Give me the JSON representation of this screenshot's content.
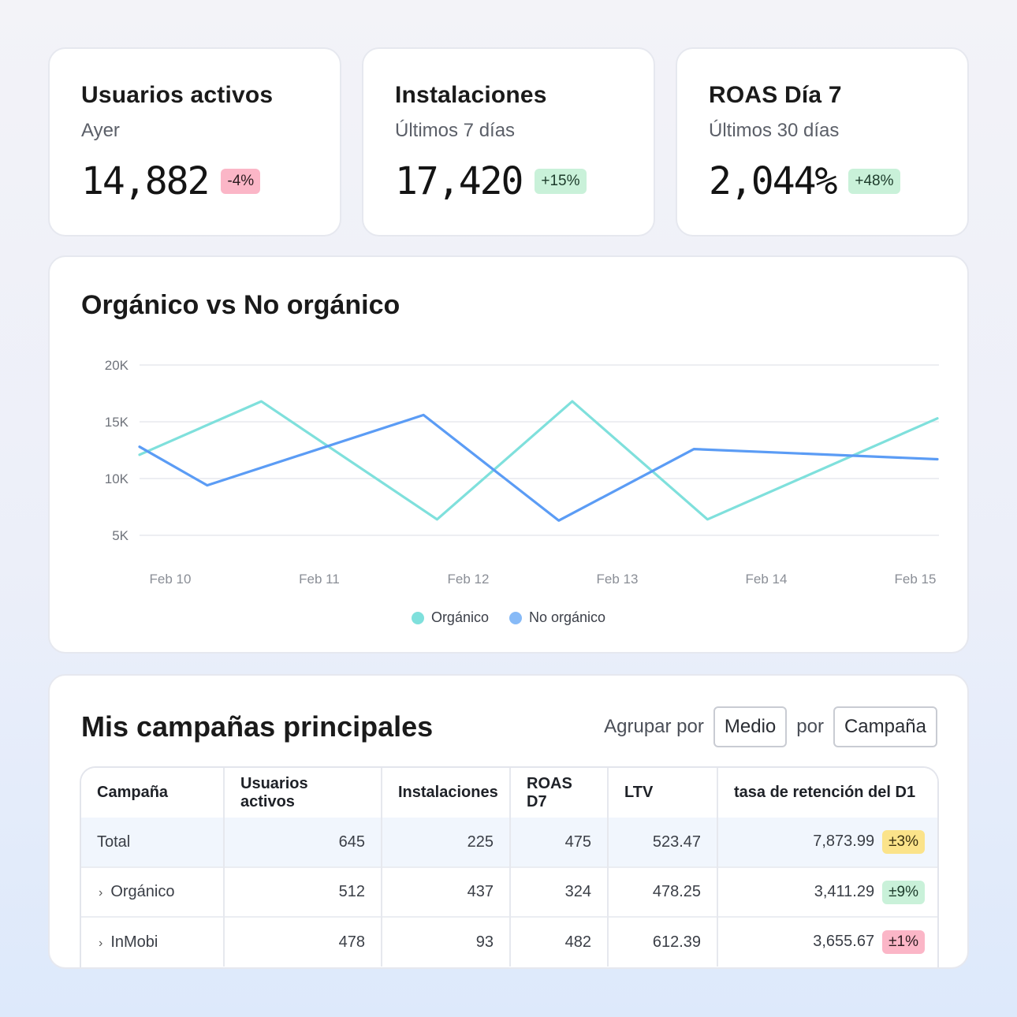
{
  "kpis": [
    {
      "title": "Usuarios activos",
      "subtitle": "Ayer",
      "value": "14,882",
      "delta": "-4%",
      "delta_tone": "red"
    },
    {
      "title": "Instalaciones",
      "subtitle": "Últimos 7 días",
      "value": "17,420",
      "delta": "+15%",
      "delta_tone": "green"
    },
    {
      "title": "ROAS Día 7",
      "subtitle": "Últimos 30 días",
      "value": "2,044%",
      "delta": "+48%",
      "delta_tone": "green"
    }
  ],
  "chart_card": {
    "title": "Orgánico vs No orgánico"
  },
  "chart_data": {
    "type": "line",
    "title": "Orgánico vs No orgánico",
    "x_ticks": [
      "Feb 10",
      "Feb 11",
      "Feb 12",
      "Feb 13",
      "Feb 14",
      "Feb 15"
    ],
    "y_ticks": [
      "20K",
      "15K",
      "10K",
      "5K"
    ],
    "y_tick_values": [
      20000,
      15000,
      10000,
      5000
    ],
    "ylim": [
      5000,
      20000
    ],
    "xlim": [
      0,
      5.9
    ],
    "grid": true,
    "legend_placement": "bottom-center",
    "series": [
      {
        "name": "Orgánico",
        "color": "#7fe0dc",
        "points": [
          [
            0,
            12100
          ],
          [
            0.9,
            16800
          ],
          [
            2.2,
            6400
          ],
          [
            3.2,
            16800
          ],
          [
            4.2,
            6400
          ],
          [
            5.9,
            15300
          ]
        ]
      },
      {
        "name": "No orgánico",
        "color": "#5b9cf5",
        "points": [
          [
            0,
            12800
          ],
          [
            0.5,
            9400
          ],
          [
            2.1,
            15600
          ],
          [
            3.1,
            6300
          ],
          [
            4.1,
            12600
          ],
          [
            5.9,
            11700
          ]
        ]
      }
    ],
    "legend": [
      {
        "label": "Orgánico",
        "color": "#7fe0dc"
      },
      {
        "label": "No orgánico",
        "color": "#87baf7"
      }
    ]
  },
  "campaigns": {
    "title": "Mis campañas principales",
    "group_label": "Agrupar por",
    "group_value_1": "Medio",
    "group_by_connector": "por",
    "group_value_2": "Campaña",
    "columns": [
      "Campaña",
      "Usuarios activos",
      "Instalaciones",
      "ROAS D7",
      "LTV",
      "tasa de retención del D1"
    ],
    "rows": [
      {
        "name": "Total",
        "expandable": false,
        "users": "645",
        "installs": "225",
        "roas": "475",
        "ltv": "523.47",
        "retention": "7,873.99",
        "delta": "±3%",
        "delta_tone": "yellow"
      },
      {
        "name": "Orgánico",
        "expandable": true,
        "users": "512",
        "installs": "437",
        "roas": "324",
        "ltv": "478.25",
        "retention": "3,411.29",
        "delta": "±9%",
        "delta_tone": "green"
      },
      {
        "name": "InMobi",
        "expandable": true,
        "users": "478",
        "installs": "93",
        "roas": "482",
        "ltv": "612.39",
        "retention": "3,655.67",
        "delta": "±1%",
        "delta_tone": "red"
      }
    ]
  }
}
